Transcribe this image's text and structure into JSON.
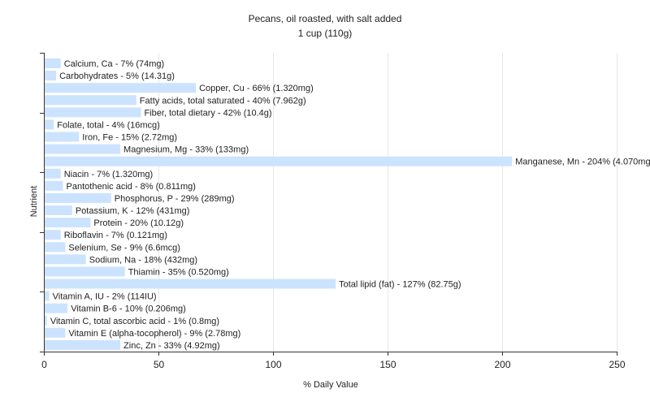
{
  "chart_data": {
    "type": "bar",
    "orientation": "horizontal",
    "title": "Pecans, oil roasted, with salt added",
    "subtitle": "1 cup (110g)",
    "xlabel": "% Daily Value",
    "ylabel": "Nutrient",
    "xlim": [
      0,
      250
    ],
    "xticks": [
      0,
      50,
      100,
      150,
      200,
      250
    ],
    "grid": "vertical",
    "legend": "none",
    "bar_color": "#cce3ff",
    "categories": [
      "Calcium, Ca",
      "Carbohydrates",
      "Copper, Cu",
      "Fatty acids, total saturated",
      "Fiber, total dietary",
      "Folate, total",
      "Iron, Fe",
      "Magnesium, Mg",
      "Manganese, Mn",
      "Niacin",
      "Pantothenic acid",
      "Phosphorus, P",
      "Potassium, K",
      "Protein",
      "Riboflavin",
      "Selenium, Se",
      "Sodium, Na",
      "Thiamin",
      "Total lipid (fat)",
      "Vitamin A, IU",
      "Vitamin B-6",
      "Vitamin C, total ascorbic acid",
      "Vitamin E (alpha-tocopherol)",
      "Zinc, Zn"
    ],
    "values": [
      7,
      5,
      66,
      40,
      42,
      4,
      15,
      33,
      204,
      7,
      8,
      29,
      12,
      20,
      7,
      9,
      18,
      35,
      127,
      2,
      10,
      1,
      9,
      33
    ],
    "labels": [
      "Calcium, Ca - 7% (74mg)",
      "Carbohydrates - 5% (14.31g)",
      "Copper, Cu - 66% (1.320mg)",
      "Fatty acids, total saturated - 40% (7.962g)",
      "Fiber, total dietary - 42% (10.4g)",
      "Folate, total - 4% (16mcg)",
      "Iron, Fe - 15% (2.72mg)",
      "Magnesium, Mg - 33% (133mg)",
      "Manganese, Mn - 204% (4.070mg)",
      "Niacin - 7% (1.320mg)",
      "Pantothenic acid - 8% (0.811mg)",
      "Phosphorus, P - 29% (289mg)",
      "Potassium, K - 12% (431mg)",
      "Protein - 20% (10.12g)",
      "Riboflavin - 7% (0.121mg)",
      "Selenium, Se - 9% (6.6mcg)",
      "Sodium, Na - 18% (432mg)",
      "Thiamin - 35% (0.520mg)",
      "Total lipid (fat) - 127% (82.75g)",
      "Vitamin A, IU - 2% (114IU)",
      "Vitamin B-6 - 10% (0.206mg)",
      "Vitamin C, total ascorbic acid - 1% (0.8mg)",
      "Vitamin E (alpha-tocopherol) - 9% (2.78mg)",
      "Zinc, Zn - 33% (4.92mg)"
    ]
  }
}
